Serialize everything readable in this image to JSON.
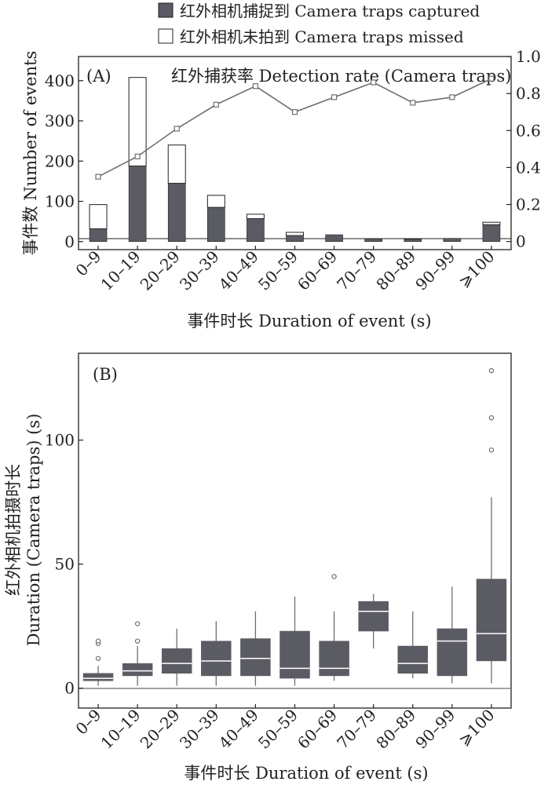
{
  "legend": {
    "captured": "红外相机捕捉到 Camera traps captured",
    "missed": "红外相机未拍到 Camera traps missed"
  },
  "colors": {
    "dark_fill": "#5b5c63",
    "axis": "#231f20",
    "median": "#ffffff",
    "line": "#6d6e71"
  },
  "chart_data": [
    {
      "type": "bar",
      "panel_label": "(A)",
      "title": "红外捕获率 Detection rate (Camera traps)",
      "stacked": true,
      "categories": [
        "0–9",
        "10–19",
        "20–29",
        "30–39",
        "40–49",
        "50–59",
        "60–69",
        "70–79",
        "80–89",
        "90–99",
        "⩾100"
      ],
      "series": [
        {
          "name": "红外相机捕捉到 Camera traps captured",
          "values": [
            32,
            188,
            145,
            85,
            57,
            15,
            17,
            7,
            6,
            8,
            42
          ]
        },
        {
          "name": "红外相机未拍到 Camera traps missed",
          "values": [
            60,
            220,
            95,
            30,
            11,
            8,
            0,
            0,
            0,
            0,
            6
          ]
        }
      ],
      "line_series": {
        "axis": "right",
        "values": [
          0.35,
          0.46,
          0.61,
          0.74,
          0.84,
          0.7,
          0.78,
          0.86,
          0.75,
          0.78,
          0.88
        ]
      },
      "xlabel": "事件时长 Duration of event (s)",
      "ylabel": "事件数 Number of events",
      "ylim": [
        -20,
        460
      ],
      "yticks": [
        0,
        100,
        200,
        300,
        400
      ],
      "y2lim": [
        -0.044,
        1.0
      ],
      "y2ticks": [
        "0",
        "0.2",
        "0.4",
        "0.6",
        "0.8",
        "1.0"
      ],
      "legend_position": "top-center"
    },
    {
      "type": "box",
      "panel_label": "(B)",
      "categories": [
        "0–9",
        "10–19",
        "20–29",
        "30–39",
        "40–49",
        "50–59",
        "60–69",
        "70–79",
        "80–89",
        "90–99",
        "⩾100"
      ],
      "boxes": [
        {
          "whislo": 1,
          "q1": 3,
          "med": 4,
          "q3": 6,
          "whishi": 9,
          "fliers": [
            12,
            18,
            19
          ]
        },
        {
          "whislo": 1,
          "q1": 5,
          "med": 7,
          "q3": 10,
          "whishi": 17,
          "fliers": [
            19,
            26
          ]
        },
        {
          "whislo": 1,
          "q1": 6,
          "med": 10,
          "q3": 16,
          "whishi": 24,
          "fliers": []
        },
        {
          "whislo": 1,
          "q1": 5,
          "med": 11,
          "q3": 19,
          "whishi": 27,
          "fliers": []
        },
        {
          "whislo": 1,
          "q1": 5,
          "med": 12,
          "q3": 20,
          "whishi": 31,
          "fliers": []
        },
        {
          "whislo": 1,
          "q1": 4,
          "med": 8,
          "q3": 23,
          "whishi": 37,
          "fliers": []
        },
        {
          "whislo": 3,
          "q1": 5,
          "med": 8,
          "q3": 19,
          "whishi": 31,
          "fliers": [
            45
          ]
        },
        {
          "whislo": 16,
          "q1": 23,
          "med": 31,
          "q3": 35,
          "whishi": 38,
          "fliers": []
        },
        {
          "whislo": 4,
          "q1": 6,
          "med": 10,
          "q3": 17,
          "whishi": 31,
          "fliers": []
        },
        {
          "whislo": 2,
          "q1": 5,
          "med": 19,
          "q3": 24,
          "whishi": 41,
          "fliers": []
        },
        {
          "whislo": 2,
          "q1": 11,
          "med": 22,
          "q3": 44,
          "whishi": 77,
          "fliers": [
            96,
            109,
            128
          ]
        }
      ],
      "xlabel": "事件时长 Duration of event (s)",
      "ylabel": [
        "红外相机拍摄时长",
        "Duration (Camera traps) (s)"
      ],
      "ylim": [
        -8,
        135
      ],
      "yticks": [
        0,
        50,
        100
      ]
    }
  ]
}
